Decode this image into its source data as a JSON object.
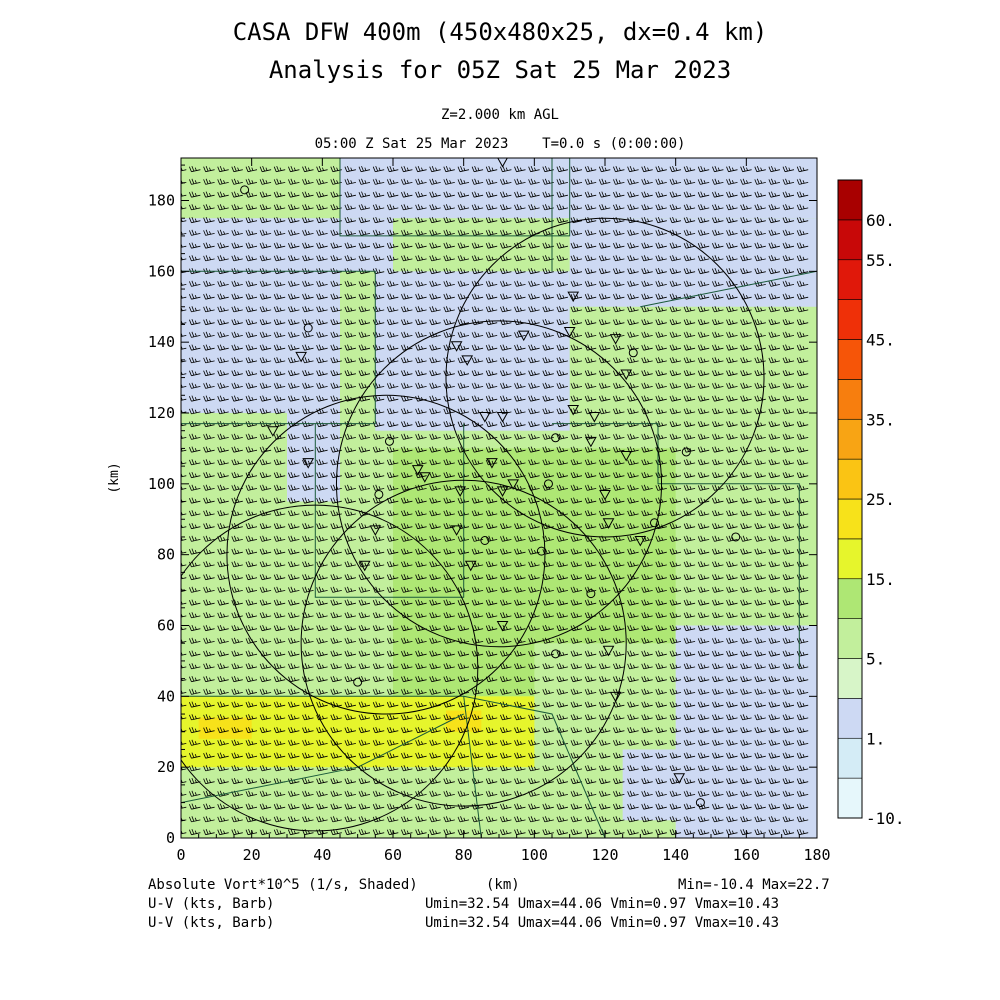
{
  "title": {
    "line1": "CASA DFW 400m (450x480x25, dx=0.4 km)",
    "line2": "Analysis for 05Z Sat 25 Mar 2023"
  },
  "subtitle": {
    "level": "Z=2.000 km AGL",
    "time": "05:00 Z Sat 25 Mar 2023    T=0.0 s (0:00:00)"
  },
  "footer": {
    "shaded_label": "Absolute Vort*10^5 (1/s, Shaded)",
    "xunit": "(km)",
    "minmax": "Min=-10.4 Max=22.7",
    "barb1_label": "U-V (kts, Barb)",
    "barb1_stats": "Umin=32.54 Umax=44.06 Vmin=0.97 Vmax=10.43",
    "barb2_label": "U-V (kts, Barb)",
    "barb2_stats": "Umin=32.54 Umax=44.06 Vmin=0.97 Vmax=10.43"
  },
  "chart_data": {
    "type": "heatmap",
    "title": "CASA DFW 400m (450x480x25, dx=0.4 km)",
    "subtitle": "Analysis for 05Z Sat 25 Mar 2023",
    "xlabel": "(km)",
    "ylabel": "(km)",
    "xlim": [
      0,
      180
    ],
    "ylim": [
      0,
      192
    ],
    "x_ticks": [
      0,
      20,
      40,
      60,
      80,
      100,
      120,
      140,
      160,
      180
    ],
    "y_ticks": [
      0,
      20,
      40,
      60,
      80,
      100,
      120,
      140,
      160,
      180
    ],
    "colorbar": {
      "levels": [
        -10,
        1,
        5,
        15,
        25,
        35,
        45,
        55,
        60
      ],
      "tick_labels": [
        "-10.",
        "1.",
        "5.",
        "15.",
        "25.",
        "35.",
        "45.",
        "55.",
        "60."
      ],
      "bins": [
        {
          "lo": -10,
          "hi": -5,
          "color": "#e6f7fb"
        },
        {
          "lo": -5,
          "hi": 1,
          "color": "#d4ecf6"
        },
        {
          "lo": 1,
          "hi": 3,
          "color": "#cdd9f3"
        },
        {
          "lo": 3,
          "hi": 5,
          "color": "#d7f5c8"
        },
        {
          "lo": 5,
          "hi": 10,
          "color": "#c2ef9c"
        },
        {
          "lo": 10,
          "hi": 15,
          "color": "#aee774"
        },
        {
          "lo": 15,
          "hi": 20,
          "color": "#e6f52c"
        },
        {
          "lo": 20,
          "hi": 25,
          "color": "#f7e21a"
        },
        {
          "lo": 25,
          "hi": 30,
          "color": "#fac414"
        },
        {
          "lo": 30,
          "hi": 35,
          "color": "#f8a414"
        },
        {
          "lo": 35,
          "hi": 40,
          "color": "#f77e0e"
        },
        {
          "lo": 40,
          "hi": 45,
          "color": "#f65508"
        },
        {
          "lo": 45,
          "hi": 50,
          "color": "#ef3008"
        },
        {
          "lo": 50,
          "hi": 55,
          "color": "#e0180a"
        },
        {
          "lo": 55,
          "hi": 60,
          "color": "#c80808"
        },
        {
          "lo": 60,
          "hi": 65,
          "color": "#a80000"
        }
      ]
    },
    "field": {
      "background_value": 7,
      "regions": [
        {
          "x": [
            0,
            45
          ],
          "y": [
            120,
            160
          ],
          "value": 2
        },
        {
          "x": [
            45,
            100
          ],
          "y": [
            175,
            192
          ],
          "value": 2
        },
        {
          "x": [
            100,
            180
          ],
          "y": [
            175,
            192
          ],
          "value": 2
        },
        {
          "x": [
            55,
            110
          ],
          "y": [
            115,
            160
          ],
          "value": 2
        },
        {
          "x": [
            110,
            180
          ],
          "y": [
            150,
            175
          ],
          "value": 2
        },
        {
          "x": [
            30,
            45
          ],
          "y": [
            95,
            120
          ],
          "value": 2
        },
        {
          "x": [
            0,
            60
          ],
          "y": [
            160,
            175
          ],
          "value": 2
        },
        {
          "x": [
            60,
            100
          ],
          "y": [
            40,
            110
          ],
          "value": 12
        },
        {
          "x": [
            100,
            140
          ],
          "y": [
            55,
            110
          ],
          "value": 10
        },
        {
          "x": [
            0,
            100
          ],
          "y": [
            20,
            40
          ],
          "value": 16
        },
        {
          "x": [
            5,
            20
          ],
          "y": [
            28,
            34
          ],
          "value": 22
        },
        {
          "x": [
            75,
            85
          ],
          "y": [
            30,
            36
          ],
          "value": 23
        },
        {
          "x": [
            140,
            180
          ],
          "y": [
            0,
            60
          ],
          "value": 2
        },
        {
          "x": [
            125,
            150
          ],
          "y": [
            5,
            25
          ],
          "value": 2
        }
      ]
    },
    "wind": {
      "u_range_kts": [
        32.54,
        44.06
      ],
      "v_range_kts": [
        0.97,
        10.43
      ],
      "dominant_direction": "southwesterly"
    },
    "range_rings": [
      {
        "center": [
          38,
          48
        ],
        "radius": 46
      },
      {
        "center": [
          80,
          55
        ],
        "radius": 46
      },
      {
        "center": [
          90,
          100
        ],
        "radius": 46
      },
      {
        "center": [
          120,
          130
        ],
        "radius": 45
      },
      {
        "center": [
          58,
          80
        ],
        "radius": 45
      }
    ],
    "boundaries": [
      [
        [
          0,
          160
        ],
        [
          55,
          160
        ],
        [
          55,
          117
        ],
        [
          0,
          117
        ]
      ],
      [
        [
          45,
          192
        ],
        [
          45,
          170
        ],
        [
          110,
          170
        ],
        [
          110,
          192
        ]
      ],
      [
        [
          38,
          117
        ],
        [
          38,
          68
        ],
        [
          80,
          68
        ],
        [
          80,
          117
        ]
      ],
      [
        [
          105,
          117
        ],
        [
          135,
          117
        ],
        [
          135,
          100
        ],
        [
          175,
          100
        ],
        [
          175,
          48
        ]
      ],
      [
        [
          105,
          160
        ],
        [
          105,
          192
        ]
      ],
      [
        [
          130,
          150
        ],
        [
          180,
          160
        ]
      ],
      [
        [
          0,
          40
        ],
        [
          80,
          40
        ],
        [
          105,
          35
        ],
        [
          120,
          0
        ]
      ],
      [
        [
          80,
          40
        ],
        [
          85,
          0
        ]
      ],
      [
        [
          0,
          10
        ],
        [
          50,
          20
        ],
        [
          80,
          35
        ]
      ]
    ],
    "site_markers": [
      {
        "x": 18,
        "y": 183,
        "shape": "circle"
      },
      {
        "x": 36,
        "y": 144,
        "shape": "circle"
      },
      {
        "x": 34,
        "y": 136,
        "shape": "triangle"
      },
      {
        "x": 26,
        "y": 115,
        "shape": "triangle"
      },
      {
        "x": 36,
        "y": 106,
        "shape": "triangle"
      },
      {
        "x": 59,
        "y": 112,
        "shape": "circle"
      },
      {
        "x": 56,
        "y": 97,
        "shape": "circle"
      },
      {
        "x": 55,
        "y": 87,
        "shape": "triangle"
      },
      {
        "x": 52,
        "y": 77,
        "shape": "triangle"
      },
      {
        "x": 67,
        "y": 104,
        "shape": "triangle"
      },
      {
        "x": 69,
        "y": 102,
        "shape": "triangle"
      },
      {
        "x": 78,
        "y": 139,
        "shape": "triangle"
      },
      {
        "x": 81,
        "y": 135,
        "shape": "triangle"
      },
      {
        "x": 86,
        "y": 119,
        "shape": "triangle"
      },
      {
        "x": 91,
        "y": 119,
        "shape": "triangle"
      },
      {
        "x": 91,
        "y": 191,
        "shape": "triangle"
      },
      {
        "x": 97,
        "y": 142,
        "shape": "triangle"
      },
      {
        "x": 111,
        "y": 153,
        "shape": "triangle"
      },
      {
        "x": 110,
        "y": 143,
        "shape": "triangle"
      },
      {
        "x": 123,
        "y": 141,
        "shape": "triangle"
      },
      {
        "x": 128,
        "y": 137,
        "shape": "circle"
      },
      {
        "x": 126,
        "y": 131,
        "shape": "triangle"
      },
      {
        "x": 111,
        "y": 121,
        "shape": "triangle"
      },
      {
        "x": 117,
        "y": 119,
        "shape": "triangle"
      },
      {
        "x": 106,
        "y": 113,
        "shape": "circle"
      },
      {
        "x": 116,
        "y": 112,
        "shape": "triangle"
      },
      {
        "x": 126,
        "y": 108,
        "shape": "triangle"
      },
      {
        "x": 143,
        "y": 109,
        "shape": "circle"
      },
      {
        "x": 88,
        "y": 106,
        "shape": "triangle"
      },
      {
        "x": 79,
        "y": 98,
        "shape": "triangle"
      },
      {
        "x": 91,
        "y": 98,
        "shape": "triangle"
      },
      {
        "x": 94,
        "y": 100,
        "shape": "triangle"
      },
      {
        "x": 104,
        "y": 100,
        "shape": "circle"
      },
      {
        "x": 120,
        "y": 97,
        "shape": "triangle"
      },
      {
        "x": 121,
        "y": 89,
        "shape": "triangle"
      },
      {
        "x": 134,
        "y": 89,
        "shape": "circle"
      },
      {
        "x": 130,
        "y": 84,
        "shape": "triangle"
      },
      {
        "x": 157,
        "y": 85,
        "shape": "circle"
      },
      {
        "x": 78,
        "y": 87,
        "shape": "triangle"
      },
      {
        "x": 86,
        "y": 84,
        "shape": "circle"
      },
      {
        "x": 82,
        "y": 77,
        "shape": "triangle"
      },
      {
        "x": 102,
        "y": 81,
        "shape": "circle"
      },
      {
        "x": 116,
        "y": 69,
        "shape": "circle"
      },
      {
        "x": 91,
        "y": 60,
        "shape": "triangle"
      },
      {
        "x": 121,
        "y": 53,
        "shape": "triangle"
      },
      {
        "x": 106,
        "y": 52,
        "shape": "circle"
      },
      {
        "x": 50,
        "y": 44,
        "shape": "circle"
      },
      {
        "x": 123,
        "y": 40,
        "shape": "triangle"
      },
      {
        "x": 141,
        "y": 17,
        "shape": "triangle"
      },
      {
        "x": 147,
        "y": 10,
        "shape": "circle"
      }
    ]
  }
}
